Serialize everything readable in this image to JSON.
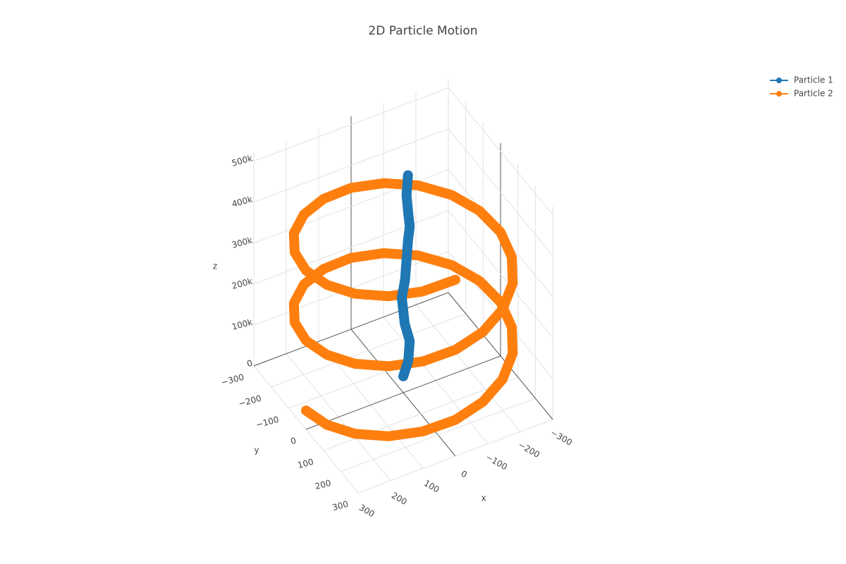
{
  "chart_data": {
    "type": "scatter3d",
    "title": "2D Particle Motion",
    "x_label": "x",
    "y_label": "y",
    "z_label": "z",
    "xlim": [
      -300,
      300
    ],
    "ylim": [
      -300,
      300
    ],
    "zlim": [
      0,
      520000
    ],
    "xticks": [
      {
        "value": -300,
        "label": "−300"
      },
      {
        "value": -200,
        "label": "−200"
      },
      {
        "value": -100,
        "label": "−100"
      },
      0,
      100,
      200,
      300
    ],
    "yticks": [
      {
        "value": -300,
        "label": "−300"
      },
      {
        "value": -200,
        "label": "−200"
      },
      {
        "value": -100,
        "label": "−100"
      },
      0,
      100,
      200,
      300
    ],
    "zticks": [
      0,
      {
        "value": 100000,
        "label": "100k"
      },
      {
        "value": 200000,
        "label": "200k"
      },
      {
        "value": 300000,
        "label": "300k"
      },
      {
        "value": 400000,
        "label": "400k"
      },
      {
        "value": 500000,
        "label": "500k"
      }
    ],
    "grid": true,
    "legend": "top-right",
    "series": [
      {
        "name": "Particle 1",
        "color": "#1f77b4",
        "x": [
          0,
          -10,
          -20,
          -10,
          0,
          10,
          0,
          -10,
          -20,
          -20,
          -10,
          -10,
          -20
        ],
        "y": [
          0,
          10,
          0,
          -10,
          0,
          10,
          10,
          0,
          -10,
          0,
          10,
          0,
          -10
        ],
        "z": [
          40000,
          80000,
          120000,
          160000,
          200000,
          240000,
          280000,
          320000,
          360000,
          400000,
          440000,
          480000,
          520000
        ]
      },
      {
        "name": "Particle 2",
        "color": "#ff7f0e",
        "x": [
          300,
          285,
          243,
          176,
          93,
          0,
          -93,
          -176,
          -243,
          -285,
          -300,
          -285,
          -243,
          -176,
          -93,
          0,
          93,
          176,
          243,
          285,
          300,
          285,
          243,
          176,
          93,
          0,
          -93,
          -176,
          -243,
          -285,
          -300,
          -285,
          -243,
          -176,
          -93,
          0,
          93,
          176,
          243,
          285,
          300,
          285,
          243,
          176,
          93,
          0
        ],
        "y": [
          0,
          93,
          176,
          243,
          285,
          300,
          285,
          243,
          176,
          93,
          0,
          -93,
          -176,
          -243,
          -285,
          -300,
          -285,
          -243,
          -176,
          -93,
          0,
          93,
          176,
          243,
          285,
          300,
          285,
          243,
          176,
          93,
          0,
          -93,
          -176,
          -243,
          -285,
          -300,
          -285,
          -243,
          -176,
          -93,
          0,
          93,
          176,
          243,
          285,
          300
        ],
        "z": [
          46000,
          54550,
          63100,
          71650,
          80200,
          88750,
          97300,
          105850,
          114400,
          122950,
          131500,
          140050,
          148600,
          157150,
          165700,
          174250,
          182800,
          191350,
          199900,
          208450,
          217000,
          225550,
          234100,
          242650,
          251200,
          259750,
          268300,
          276850,
          285400,
          293950,
          302500,
          311050,
          319600,
          328150,
          336700,
          345250,
          353800,
          362350,
          370900,
          379450,
          388000,
          396550,
          405100,
          413650,
          422200,
          430750
        ]
      }
    ]
  }
}
